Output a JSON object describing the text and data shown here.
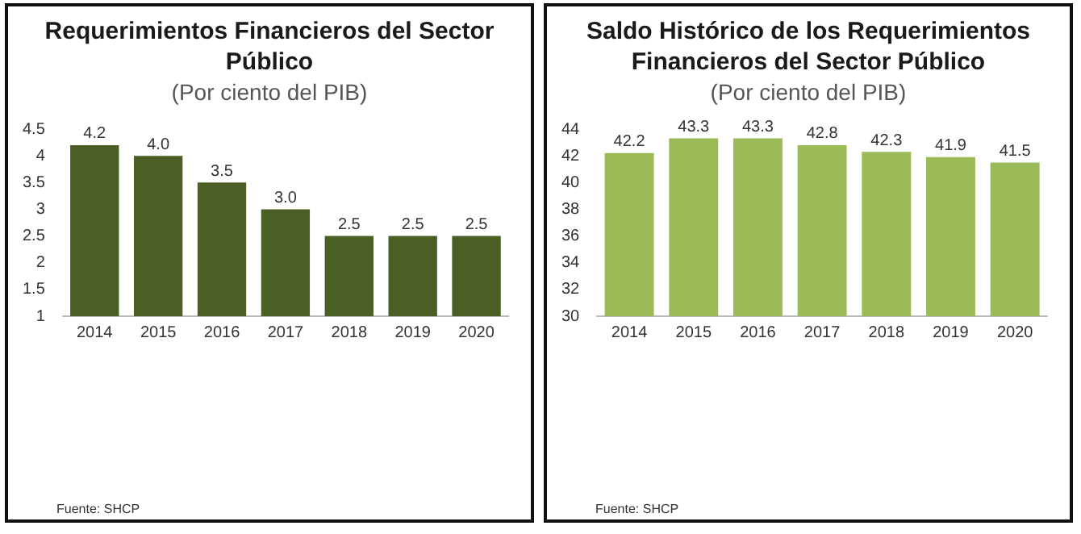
{
  "chart_data": [
    {
      "type": "bar",
      "title": "Requerimientos Financieros del Sector Público",
      "subtitle": "(Por ciento del PIB)",
      "categories": [
        "2014",
        "2015",
        "2016",
        "2017",
        "2018",
        "2019",
        "2020"
      ],
      "values": [
        4.2,
        4.0,
        3.5,
        3.0,
        2.5,
        2.5,
        2.5
      ],
      "value_labels": [
        "4.2",
        "4.0",
        "3.5",
        "3.0",
        "2.5",
        "2.5",
        "2.5"
      ],
      "color": "#4b5e24",
      "ylim": [
        1,
        4.5
      ],
      "yticks": [
        1,
        1.5,
        2,
        2.5,
        3,
        3.5,
        4,
        4.5
      ],
      "grid": false,
      "legend": false,
      "annotations": [
        "Fuente: SHCP"
      ]
    },
    {
      "type": "bar",
      "title": "Saldo Histórico de los Requerimientos Financieros del Sector Público",
      "subtitle": "(Por ciento del PIB)",
      "categories": [
        "2014",
        "2015",
        "2016",
        "2017",
        "2018",
        "2019",
        "2020"
      ],
      "values": [
        42.2,
        43.3,
        43.3,
        42.8,
        42.3,
        41.9,
        41.5
      ],
      "value_labels": [
        "42.2",
        "43.3",
        "43.3",
        "42.8",
        "42.3",
        "41.9",
        "41.5"
      ],
      "color": "#9bbb59",
      "ylim": [
        30,
        44
      ],
      "yticks": [
        30,
        32,
        34,
        36,
        38,
        40,
        42,
        44
      ],
      "grid": false,
      "legend": false,
      "annotations": [
        "Fuente: SHCP"
      ]
    }
  ]
}
